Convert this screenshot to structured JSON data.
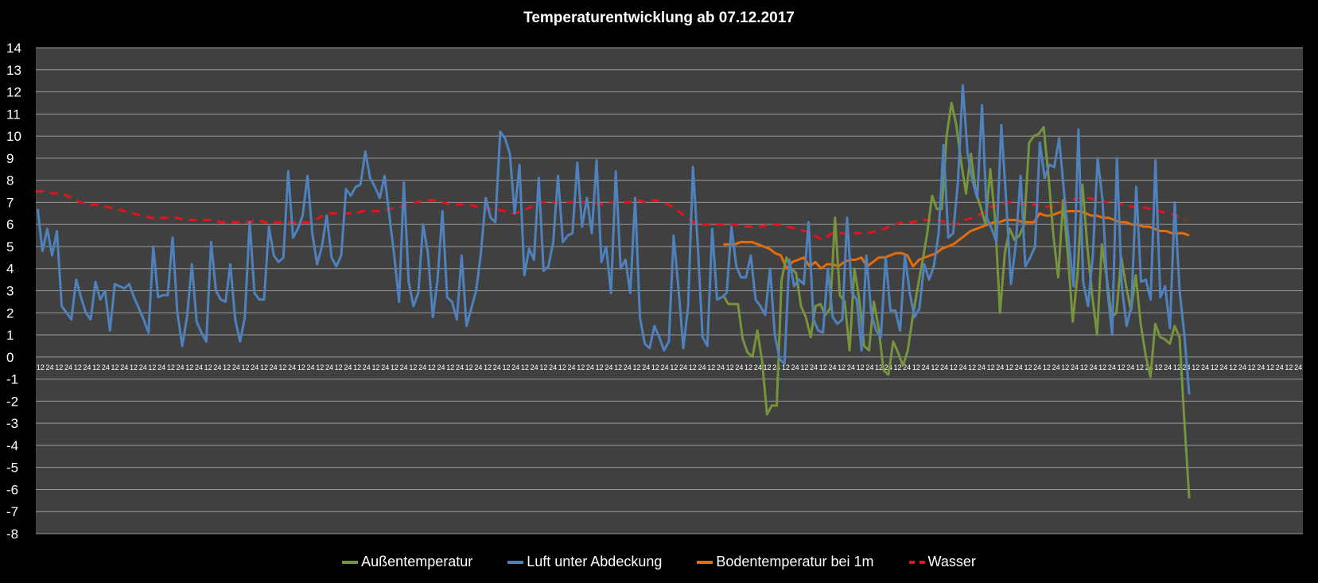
{
  "chart_data": {
    "type": "line",
    "title": "Temperaturentwicklung ab 07.12.2017",
    "xlabel": "",
    "ylabel": "",
    "ylim": [
      -8,
      14
    ],
    "yticks": [
      "14",
      "13",
      "12",
      "11",
      "10",
      "9",
      "8",
      "7",
      "6",
      "5",
      "4",
      "3",
      "2",
      "1",
      "0",
      "-1",
      "-2",
      "-3",
      "-4",
      "-5",
      "-6",
      "-7",
      "-8"
    ],
    "xtick_pattern": [
      "12",
      "24"
    ],
    "x_category_count": 136,
    "grid": true,
    "legend_position": "bottom",
    "background": "#404040",
    "series": [
      {
        "name": "Außentemperatur",
        "color": "#77933c",
        "dashed": false,
        "x_start": 73.8,
        "x_end": 123.8,
        "values": [
          2.8,
          2.4,
          2.4,
          2.4,
          0.8,
          0.2,
          0.0,
          1.2,
          -0.2,
          -2.6,
          -2.2,
          -2.2,
          3.5,
          4.5,
          4.0,
          3.8,
          2.3,
          1.8,
          0.9,
          2.3,
          2.4,
          1.9,
          2.2,
          6.3,
          2.8,
          2.5,
          0.3,
          4.0,
          2.6,
          0.5,
          0.3,
          2.5,
          1.3,
          -0.6,
          -0.8,
          0.7,
          0.2,
          -0.4,
          0.3,
          1.8,
          3.1,
          4.3,
          5.6,
          7.3,
          6.7,
          6.7,
          10.0,
          11.5,
          10.5,
          8.8,
          7.4,
          9.2,
          7.5,
          6.8,
          6.0,
          8.5,
          6.2,
          2.0,
          4.7,
          5.8,
          5.3,
          5.5,
          6.0,
          9.7,
          10.0,
          10.1,
          10.4,
          8.2,
          5.5,
          3.6,
          7.1,
          4.6,
          1.6,
          3.8,
          7.8,
          5.0,
          2.8,
          1.0,
          5.1,
          3.6,
          1.8,
          2.0,
          4.5,
          3.2,
          2.1,
          3.7,
          1.5,
          0.1,
          -0.9,
          1.5,
          0.9,
          0.8,
          0.6,
          1.4,
          0.9,
          -2.9,
          -6.4
        ]
      },
      {
        "name": "Luft unter Abdeckung",
        "color": "#4f81bd",
        "dashed": false,
        "x_start": 0.2,
        "x_end": 123.8,
        "values": [
          6.7,
          4.8,
          5.8,
          4.6,
          5.7,
          2.3,
          2.0,
          1.7,
          3.5,
          2.7,
          2.0,
          1.7,
          3.4,
          2.6,
          3.0,
          1.2,
          3.3,
          3.2,
          3.1,
          3.3,
          2.7,
          2.2,
          1.7,
          1.1,
          5.0,
          2.7,
          2.8,
          2.8,
          5.4,
          2.0,
          0.5,
          1.8,
          4.2,
          1.6,
          1.1,
          0.7,
          5.2,
          3.0,
          2.6,
          2.5,
          4.2,
          1.7,
          0.7,
          1.8,
          6.1,
          2.9,
          2.6,
          2.6,
          5.9,
          4.6,
          4.3,
          4.5,
          8.4,
          5.4,
          5.8,
          6.4,
          8.2,
          5.6,
          4.2,
          5.0,
          6.4,
          4.5,
          4.1,
          4.6,
          7.6,
          7.3,
          7.7,
          7.8,
          9.3,
          8.1,
          7.7,
          7.2,
          8.2,
          6.4,
          4.6,
          2.5,
          7.9,
          3.4,
          2.3,
          2.9,
          6.0,
          4.7,
          1.8,
          3.5,
          6.6,
          2.7,
          2.5,
          1.7,
          4.6,
          1.4,
          2.2,
          3.0,
          4.7,
          7.2,
          6.3,
          6.1,
          10.2,
          9.9,
          9.2,
          6.5,
          8.7,
          3.7,
          4.9,
          4.4,
          8.1,
          3.9,
          4.1,
          5.2,
          8.2,
          5.2,
          5.5,
          5.6,
          8.8,
          5.9,
          7.2,
          5.6,
          8.9,
          4.3,
          5.0,
          2.9,
          8.4,
          4.0,
          4.4,
          2.9,
          7.2,
          1.8,
          0.6,
          0.4,
          1.4,
          0.9,
          0.3,
          0.7,
          5.5,
          3.1,
          0.4,
          2.3,
          8.6,
          5.1,
          0.9,
          0.5,
          5.8,
          2.6,
          2.7,
          2.9,
          5.9,
          4.1,
          3.6,
          3.6,
          4.6,
          2.6,
          2.3,
          1.9,
          4.0,
          1.0,
          -0.1,
          -0.3,
          4.4,
          3.2,
          3.5,
          3.3,
          6.1,
          1.7,
          1.2,
          1.1,
          4.0,
          1.8,
          1.5,
          1.7,
          6.3,
          2.9,
          2.6,
          0.3,
          4.6,
          2.0,
          1.2,
          0.9,
          4.5,
          2.1,
          2.1,
          1.2,
          4.6,
          2.9,
          1.8,
          2.2,
          4.2,
          3.5,
          4.1,
          5.6,
          9.6,
          5.4,
          5.6,
          7.9,
          12.3,
          9.2,
          8.0,
          7.2,
          11.4,
          6.3,
          5.8,
          5.2,
          10.5,
          7.1,
          3.3,
          5.1,
          8.2,
          4.1,
          4.5,
          5.0,
          9.7,
          8.1,
          8.7,
          8.6,
          9.9,
          7.5,
          5.2,
          3.2,
          10.3,
          3.4,
          2.3,
          4.6,
          9.0,
          7.1,
          3.1,
          1.0,
          9.0,
          3.2,
          1.4,
          2.3,
          7.7,
          3.4,
          3.5,
          2.6,
          8.9,
          2.7,
          3.2,
          1.3,
          7.0,
          3.0,
          1.0,
          -1.7
        ]
      },
      {
        "name": "Bodentemperatur bei 1m",
        "color": "#e46c0a",
        "dashed": false,
        "x_start": 73.8,
        "x_end": 123.8,
        "values": [
          5.1,
          5.1,
          5.1,
          5.2,
          5.2,
          5.2,
          5.1,
          5.0,
          4.9,
          4.7,
          4.6,
          4.0,
          4.3,
          4.4,
          4.5,
          4.1,
          4.3,
          4.0,
          4.2,
          4.2,
          4.1,
          4.3,
          4.4,
          4.4,
          4.5,
          4.1,
          4.3,
          4.5,
          4.5,
          4.6,
          4.7,
          4.7,
          4.6,
          4.1,
          4.4,
          4.5,
          4.6,
          4.7,
          4.9,
          5.0,
          5.1,
          5.3,
          5.5,
          5.7,
          5.8,
          5.9,
          6.0,
          6.1,
          6.1,
          6.2,
          6.2,
          6.2,
          6.1,
          6.1,
          6.1,
          6.5,
          6.4,
          6.4,
          6.5,
          6.6,
          6.6,
          6.6,
          6.6,
          6.5,
          6.4,
          6.4,
          6.3,
          6.3,
          6.2,
          6.1,
          6.1,
          6.0,
          6.0,
          5.9,
          5.9,
          5.8,
          5.7,
          5.7,
          5.6,
          5.6,
          5.6,
          5.5
        ]
      },
      {
        "name": "Wasser",
        "color": "#e3141c",
        "dashed": true,
        "x_start": 0.0,
        "x_end": 123.4,
        "values": [
          7.5,
          7.5,
          7.4,
          7.4,
          7.2,
          7.0,
          6.9,
          6.9,
          6.8,
          6.7,
          6.6,
          6.5,
          6.4,
          6.3,
          6.3,
          6.3,
          6.3,
          6.2,
          6.2,
          6.2,
          6.2,
          6.1,
          6.1,
          6.1,
          6.1,
          6.2,
          6.1,
          6.1,
          6.1,
          6.1,
          6.1,
          6.1,
          6.3,
          6.5,
          6.5,
          6.5,
          6.5,
          6.6,
          6.6,
          6.6,
          6.7,
          6.8,
          6.9,
          7.0,
          7.1,
          7.1,
          7.0,
          6.9,
          6.9,
          6.9,
          6.8,
          6.7,
          6.7,
          6.6,
          6.5,
          6.6,
          6.8,
          7.0,
          7.0,
          7.0,
          7.0,
          7.0,
          7.0,
          7.0,
          6.9,
          7.0,
          7.0,
          7.0,
          7.1,
          7.0,
          7.1,
          7.0,
          6.8,
          6.5,
          6.2,
          6.0,
          6.0,
          6.0,
          6.0,
          6.0,
          5.9,
          5.9,
          5.9,
          6.0,
          6.0,
          5.9,
          5.8,
          5.7,
          5.5,
          5.3,
          5.6,
          5.6,
          5.6,
          5.6,
          5.6,
          5.7,
          5.8,
          6.0,
          6.1,
          6.1,
          6.2,
          6.2,
          6.2,
          6.1,
          6.0,
          6.2,
          6.3,
          6.5,
          6.8,
          6.9,
          7.0,
          7.0,
          6.9,
          6.9,
          6.8,
          6.8,
          7.0,
          7.1,
          7.2,
          7.2,
          7.1,
          7.0,
          7.0,
          6.9,
          6.8,
          6.8,
          6.7,
          6.6,
          6.5,
          6.4,
          6.2
        ]
      }
    ]
  }
}
